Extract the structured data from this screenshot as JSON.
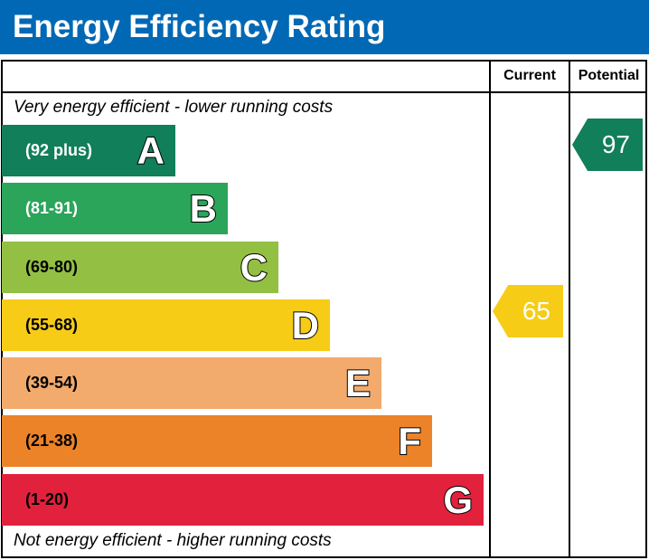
{
  "chart_data": {
    "type": "table",
    "title": "Energy Efficiency Rating",
    "columns": [
      "Current",
      "Potential"
    ],
    "top_note": "Very energy efficient - lower running costs",
    "bottom_note": "Not energy efficient - higher running costs",
    "bands": [
      {
        "letter": "A",
        "range": "(92 plus)",
        "color": "#117f59",
        "text_color": "#ffffff"
      },
      {
        "letter": "B",
        "range": "(81-91)",
        "color": "#2ba55a",
        "text_color": "#ffffff"
      },
      {
        "letter": "C",
        "range": "(69-80)",
        "color": "#93c043",
        "text_color": "#000000"
      },
      {
        "letter": "D",
        "range": "(55-68)",
        "color": "#f6cc17",
        "text_color": "#000000"
      },
      {
        "letter": "E",
        "range": "(39-54)",
        "color": "#f2aa6d",
        "text_color": "#000000"
      },
      {
        "letter": "F",
        "range": "(21-38)",
        "color": "#ec8328",
        "text_color": "#000000"
      },
      {
        "letter": "G",
        "range": "(1-20)",
        "color": "#e2223d",
        "text_color": "#000000"
      }
    ],
    "current": {
      "value": "65",
      "band": "D",
      "color": "#f6cc17"
    },
    "potential": {
      "value": "97",
      "band": "A",
      "color": "#117f59"
    }
  }
}
